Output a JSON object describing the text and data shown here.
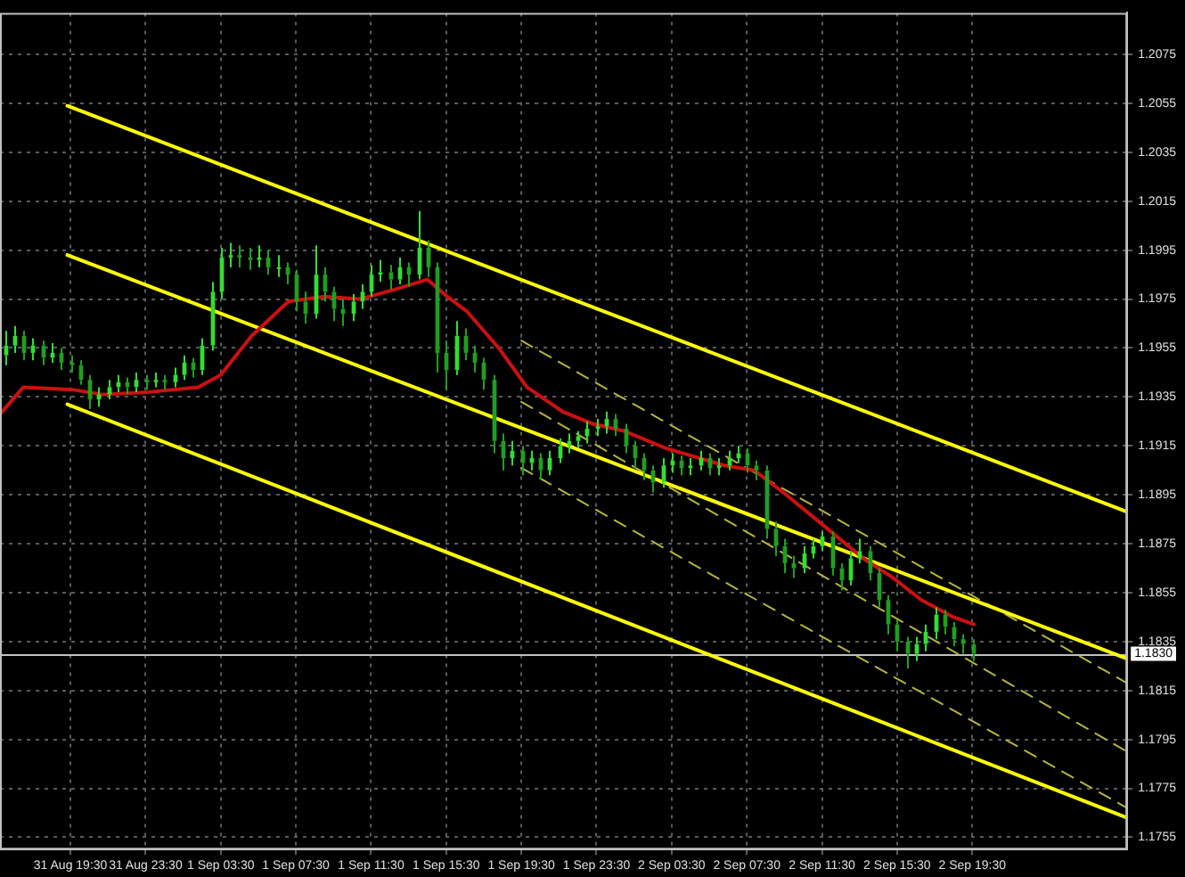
{
  "chart_data": {
    "type": "candlestick",
    "colors": [
      "#33dd33",
      "#33dd33",
      "#1f9f1f",
      "#33dd33",
      "#1f9f1f",
      "#33dd33",
      "#1f9f1f",
      "#1f9f1f",
      "#1f9f1f",
      "#1f9f1f",
      "#33dd33",
      "#33dd33",
      "#33dd33",
      "#1f9f1f",
      "#33dd33",
      "#1f9f1f",
      "#33dd33",
      "#1f9f1f",
      "#33dd33",
      "#33dd33",
      "#1f9f1f",
      "#33dd33",
      "#33dd33",
      "#33dd33",
      "#33dd33",
      "#1f9f1f",
      "#1f9f1f",
      "#33dd33",
      "#1f9f1f",
      "#33dd33",
      "#1f9f1f",
      "#1f9f1f",
      "#1f9f1f",
      "#33dd33",
      "#1f9f1f",
      "#1f9f1f",
      "#1f9f1f",
      "#33dd33",
      "#33dd33",
      "#33dd33",
      "#33dd33",
      "#1f9f1f",
      "#33dd33",
      "#1f9f1f",
      "#33dd33",
      "#1f9f1f",
      "#1f9f1f",
      "#1f9f1f",
      "#33dd33",
      "#1f9f1f",
      "#1f9f1f",
      "#1f9f1f",
      "#1f9f1f",
      "#1f9f1f",
      "#33dd33",
      "#1f9f1f",
      "#33dd33",
      "#1f9f1f",
      "#33dd33",
      "#33dd33",
      "#33dd33",
      "#33dd33",
      "#33dd33",
      "#33dd33",
      "#33dd33",
      "#1f9f1f",
      "#1f9f1f",
      "#1f9f1f",
      "#1f9f1f",
      "#1f9f1f",
      "#33dd33",
      "#33dd33",
      "#1f9f1f",
      "#33dd33",
      "#33dd33",
      "#1f9f1f",
      "#33dd33",
      "#33dd33",
      "#33dd33",
      "#1f9f1f",
      "#1f9f1f",
      "#1f9f1f",
      "#1f9f1f",
      "#1f9f1f",
      "#1f9f1f",
      "#33dd33",
      "#33dd33",
      "#33dd33",
      "#1f9f1f",
      "#1f9f1f",
      "#33dd33",
      "#33dd33",
      "#1f9f1f",
      "#1f9f1f",
      "#1f9f1f",
      "#1f9f1f",
      "#1f9f1f",
      "#33dd33",
      "#33dd33",
      "#33dd33",
      "#1f9f1f",
      "#1f9f1f",
      "#1f9f1f",
      "#1f9f1f"
    ],
    "x": [
      "--08-31T16:00",
      "--08-31T16:30",
      "--08-31T17:00",
      "--08-31T17:30",
      "--08-31T18:00",
      "--08-31T18:30",
      "--08-31T19:00",
      "--08-31T19:30",
      "--08-31T20:00",
      "--08-31T20:30",
      "--08-31T21:00",
      "--08-31T21:30",
      "--08-31T22:00",
      "--08-31T22:30",
      "--08-31T23:00",
      "--08-31T23:30",
      "--09-01T00:00",
      "--09-01T00:30",
      "--09-01T01:00",
      "--09-01T01:30",
      "--09-01T02:00",
      "--09-01T02:30",
      "--09-01T03:00",
      "--09-01T03:30",
      "--09-01T04:00",
      "--09-01T04:30",
      "--09-01T05:00",
      "--09-01T05:30",
      "--09-01T06:00",
      "--09-01T06:30",
      "--09-01T07:00",
      "--09-01T07:30",
      "--09-01T08:00",
      "--09-01T08:30",
      "--09-01T09:00",
      "--09-01T09:30",
      "--09-01T10:00",
      "--09-01T10:30",
      "--09-01T11:00",
      "--09-01T11:30",
      "--09-01T12:00",
      "--09-01T12:30",
      "--09-01T13:00",
      "--09-01T13:30",
      "--09-01T14:00",
      "--09-01T14:30",
      "--09-01T15:00",
      "--09-01T15:30",
      "--09-01T16:00",
      "--09-01T16:30",
      "--09-01T17:00",
      "--09-01T17:30",
      "--09-01T18:00",
      "--09-01T18:30",
      "--09-01T19:00",
      "--09-01T19:30",
      "--09-01T20:00",
      "--09-01T20:30",
      "--09-01T21:00",
      "--09-01T21:30",
      "--09-01T22:00",
      "--09-01T22:30",
      "--09-01T23:00",
      "--09-01T23:30",
      "--09-02T00:00",
      "--09-02T00:30",
      "--09-02T01:00",
      "--09-02T01:30",
      "--09-02T02:00",
      "--09-02T02:30",
      "--09-02T03:00",
      "--09-02T03:30",
      "--09-02T04:00",
      "--09-02T04:30",
      "--09-02T05:00",
      "--09-02T05:30",
      "--09-02T06:00",
      "--09-02T06:30",
      "--09-02T07:00",
      "--09-02T07:30",
      "--09-02T08:00",
      "--09-02T08:30",
      "--09-02T09:00",
      "--09-02T09:30",
      "--09-02T10:00",
      "--09-02T10:30",
      "--09-02T11:00",
      "--09-02T11:30",
      "--09-02T12:00",
      "--09-02T12:30",
      "--09-02T13:00",
      "--09-02T13:30",
      "--09-02T14:00",
      "--09-02T14:30",
      "--09-02T15:00",
      "--09-02T15:30",
      "--09-02T16:00",
      "--09-02T16:30",
      "--09-02T17:00",
      "--09-02T17:30",
      "--09-02T18:00",
      "--09-02T18:30",
      "--09-02T19:00",
      "--09-02T19:30"
    ],
    "ohlc": [
      [
        1.1952,
        1.1962,
        1.1948,
        1.1956
      ],
      [
        1.1956,
        1.1964,
        1.1953,
        1.196
      ],
      [
        1.196,
        1.1962,
        1.195,
        1.1953
      ],
      [
        1.1953,
        1.1959,
        1.195,
        1.1956
      ],
      [
        1.1956,
        1.1958,
        1.1948,
        1.1951
      ],
      [
        1.1951,
        1.1957,
        1.1949,
        1.1953
      ],
      [
        1.1953,
        1.1955,
        1.1946,
        1.1949
      ],
      [
        1.1949,
        1.1952,
        1.1945,
        1.1948
      ],
      [
        1.1948,
        1.195,
        1.194,
        1.1942
      ],
      [
        1.1942,
        1.1944,
        1.193,
        1.1934
      ],
      [
        1.1934,
        1.1939,
        1.1931,
        1.1936
      ],
      [
        1.1936,
        1.1942,
        1.1934,
        1.1939
      ],
      [
        1.1939,
        1.1944,
        1.1937,
        1.1941
      ],
      [
        1.1941,
        1.1943,
        1.1936,
        1.1939
      ],
      [
        1.1939,
        1.1945,
        1.1937,
        1.1942
      ],
      [
        1.1942,
        1.1944,
        1.1938,
        1.1941
      ],
      [
        1.1941,
        1.1945,
        1.1939,
        1.1942
      ],
      [
        1.1942,
        1.1944,
        1.1938,
        1.1941
      ],
      [
        1.1941,
        1.1947,
        1.1939,
        1.1944
      ],
      [
        1.1944,
        1.1952,
        1.1942,
        1.1949
      ],
      [
        1.1949,
        1.1951,
        1.1943,
        1.1946
      ],
      [
        1.1946,
        1.1959,
        1.1944,
        1.1956
      ],
      [
        1.1956,
        1.1982,
        1.1954,
        1.1978
      ],
      [
        1.1978,
        1.1996,
        1.1975,
        1.1992
      ],
      [
        1.1992,
        1.1998,
        1.1988,
        1.1993
      ],
      [
        1.1993,
        1.1997,
        1.1988,
        1.1992
      ],
      [
        1.1992,
        1.1996,
        1.1987,
        1.1991
      ],
      [
        1.1991,
        1.1997,
        1.1988,
        1.1992
      ],
      [
        1.1992,
        1.1995,
        1.1985,
        1.1988
      ],
      [
        1.1988,
        1.1993,
        1.1984,
        1.1988
      ],
      [
        1.1988,
        1.199,
        1.1981,
        1.1985
      ],
      [
        1.1985,
        1.1987,
        1.197,
        1.1974
      ],
      [
        1.1974,
        1.1978,
        1.1965,
        1.1969
      ],
      [
        1.1969,
        1.1997,
        1.1967,
        1.1985
      ],
      [
        1.1985,
        1.1988,
        1.1974,
        1.1978
      ],
      [
        1.1978,
        1.198,
        1.1966,
        1.1971
      ],
      [
        1.1971,
        1.1975,
        1.1964,
        1.1969
      ],
      [
        1.1969,
        1.1977,
        1.1966,
        1.1974
      ],
      [
        1.1974,
        1.1981,
        1.1971,
        1.1978
      ],
      [
        1.1978,
        1.1989,
        1.1976,
        1.1985
      ],
      [
        1.1985,
        1.1991,
        1.1982,
        1.1986
      ],
      [
        1.1986,
        1.1989,
        1.1979,
        1.1983
      ],
      [
        1.1983,
        1.1992,
        1.1981,
        1.1988
      ],
      [
        1.1988,
        1.199,
        1.198,
        1.1985
      ],
      [
        1.1985,
        1.2011,
        1.1983,
        1.1996
      ],
      [
        1.1996,
        1.1999,
        1.1984,
        1.1988
      ],
      [
        1.1988,
        1.199,
        1.1945,
        1.1953
      ],
      [
        1.1953,
        1.1958,
        1.1938,
        1.1946
      ],
      [
        1.1946,
        1.1966,
        1.1944,
        1.196
      ],
      [
        1.196,
        1.1963,
        1.195,
        1.1953
      ],
      [
        1.1953,
        1.1956,
        1.1945,
        1.1949
      ],
      [
        1.1949,
        1.1951,
        1.1938,
        1.1942
      ],
      [
        1.1942,
        1.1944,
        1.1912,
        1.1917
      ],
      [
        1.1917,
        1.192,
        1.1905,
        1.191
      ],
      [
        1.191,
        1.1917,
        1.1907,
        1.1913
      ],
      [
        1.1913,
        1.1915,
        1.1903,
        1.1908
      ],
      [
        1.1908,
        1.1913,
        1.1905,
        1.191
      ],
      [
        1.191,
        1.1912,
        1.1901,
        1.1905
      ],
      [
        1.1905,
        1.1913,
        1.1903,
        1.191
      ],
      [
        1.191,
        1.1918,
        1.1908,
        1.1915
      ],
      [
        1.1915,
        1.192,
        1.1912,
        1.1917
      ],
      [
        1.1917,
        1.1921,
        1.1914,
        1.1919
      ],
      [
        1.1919,
        1.1925,
        1.1916,
        1.1922
      ],
      [
        1.1922,
        1.1926,
        1.1919,
        1.1923
      ],
      [
        1.1923,
        1.1929,
        1.192,
        1.1926
      ],
      [
        1.1926,
        1.1928,
        1.1919,
        1.1922
      ],
      [
        1.1922,
        1.1924,
        1.1912,
        1.1915
      ],
      [
        1.1915,
        1.1917,
        1.1906,
        1.191
      ],
      [
        1.191,
        1.1912,
        1.1901,
        1.1905
      ],
      [
        1.1905,
        1.1907,
        1.1896,
        1.19
      ],
      [
        1.19,
        1.191,
        1.1898,
        1.1907
      ],
      [
        1.1907,
        1.1912,
        1.1904,
        1.1909
      ],
      [
        1.1909,
        1.1911,
        1.1903,
        1.1906
      ],
      [
        1.1906,
        1.191,
        1.1903,
        1.1907
      ],
      [
        1.1907,
        1.1913,
        1.1905,
        1.191
      ],
      [
        1.191,
        1.1912,
        1.1903,
        1.1906
      ],
      [
        1.1906,
        1.191,
        1.1903,
        1.1907
      ],
      [
        1.1907,
        1.1913,
        1.1905,
        1.191
      ],
      [
        1.191,
        1.1915,
        1.1908,
        1.1912
      ],
      [
        1.1912,
        1.1914,
        1.1904,
        1.1907
      ],
      [
        1.1907,
        1.1909,
        1.1901,
        1.1905
      ],
      [
        1.1905,
        1.1907,
        1.1877,
        1.1881
      ],
      [
        1.1881,
        1.1884,
        1.187,
        1.1874
      ],
      [
        1.1874,
        1.1877,
        1.1863,
        1.1867
      ],
      [
        1.1867,
        1.187,
        1.1861,
        1.1865
      ],
      [
        1.1865,
        1.1874,
        1.1863,
        1.1871
      ],
      [
        1.1871,
        1.1877,
        1.1869,
        1.1874
      ],
      [
        1.1874,
        1.188,
        1.1872,
        1.1878
      ],
      [
        1.1878,
        1.188,
        1.1862,
        1.1865
      ],
      [
        1.1865,
        1.1867,
        1.1856,
        1.186
      ],
      [
        1.186,
        1.1872,
        1.1858,
        1.1869
      ],
      [
        1.1869,
        1.1877,
        1.1867,
        1.1872
      ],
      [
        1.1872,
        1.1874,
        1.186,
        1.1863
      ],
      [
        1.1863,
        1.1865,
        1.1849,
        1.1852
      ],
      [
        1.1852,
        1.1854,
        1.1838,
        1.1842
      ],
      [
        1.1842,
        1.1844,
        1.1831,
        1.1835
      ],
      [
        1.1835,
        1.1837,
        1.1824,
        1.183
      ],
      [
        1.183,
        1.1837,
        1.1827,
        1.1834
      ],
      [
        1.1834,
        1.1842,
        1.1831,
        1.1839
      ],
      [
        1.1839,
        1.1849,
        1.1836,
        1.1846
      ],
      [
        1.1846,
        1.1848,
        1.1838,
        1.1841
      ],
      [
        1.1841,
        1.1843,
        1.1833,
        1.1836
      ],
      [
        1.1836,
        1.1838,
        1.183,
        1.1834
      ],
      [
        1.1834,
        1.1836,
        1.1827,
        1.183
      ]
    ],
    "series": [
      {
        "type": "line",
        "color": "#cc1010",
        "line_style": "solid",
        "x": [
          "--08-31T15:45",
          "--08-31T17:00",
          "--08-31T19:36",
          "--08-31T21:12",
          "--08-31T23:42",
          "--09-01T02:18",
          "--09-01T03:30",
          "--09-01T05:09",
          "--09-01T07:06",
          "--09-01T09:00",
          "--09-01T10:54",
          "--09-01T12:48",
          "--09-01T14:30",
          "--09-01T15:24",
          "--09-01T16:36",
          "--09-01T18:18",
          "--09-01T19:48",
          "--09-01T21:42",
          "--09-01T23:18",
          "--09-02T01:00",
          "--09-02T03:12",
          "--09-02T06:18",
          "--09-02T07:54",
          "--09-02T09:36",
          "--09-02T11:30",
          "--09-02T13:42",
          "--09-02T15:18",
          "--09-02T16:48",
          "--09-02T18:30",
          "--09-02T19:36"
        ],
        "values": [
          1.1928,
          1.1939,
          1.1938,
          1.1936,
          1.1937,
          1.1939,
          1.1944,
          1.196,
          1.1974,
          1.1976,
          1.1975,
          1.1979,
          1.1983,
          1.1977,
          1.197,
          1.1955,
          1.1939,
          1.1929,
          1.1924,
          1.1921,
          1.1914,
          1.1907,
          1.1905,
          1.1895,
          1.1883,
          1.1869,
          1.1861,
          1.1852,
          1.1845,
          1.1842
        ]
      },
      {
        "type": "line",
        "color": "#ffff00",
        "line_style": "solid",
        "x": [
          "--08-31T19:20",
          "--09-03T03:45"
        ],
        "values": [
          1.2054,
          1.1888
        ]
      },
      {
        "type": "line",
        "color": "#ffff00",
        "line_style": "solid",
        "x": [
          "--08-31T19:20",
          "--09-03T03:45"
        ],
        "values": [
          1.1993,
          1.1828
        ]
      },
      {
        "type": "line",
        "color": "#ffff00",
        "line_style": "solid",
        "x": [
          "--08-31T19:20",
          "--09-03T03:45"
        ],
        "values": [
          1.1932,
          1.1763
        ]
      },
      {
        "type": "line",
        "color": "#b4b43c",
        "line_style": "dashed",
        "x": [
          "--09-01T19:30",
          "--09-03T03:45"
        ],
        "values": [
          1.1958,
          1.1818
        ]
      },
      {
        "type": "line",
        "color": "#b4b43c",
        "line_style": "dashed",
        "x": [
          "--09-01T19:30",
          "--09-03T03:45"
        ],
        "values": [
          1.1933,
          1.179
        ]
      },
      {
        "type": "line",
        "color": "#b4b43c",
        "line_style": "dashed",
        "x": [
          "--09-01T19:30",
          "--09-03T03:45"
        ],
        "values": [
          1.1906,
          1.1767
        ]
      }
    ],
    "xlim": [
      "--08-31T15:45",
      "--09-03T03:45"
    ],
    "xticks": [
      {
        "value": "--08-31T19:30",
        "label": "31 Aug 19:30"
      },
      {
        "value": "--08-31T23:30",
        "label": "31 Aug 23:30"
      },
      {
        "value": "--09-01T03:30",
        "label": "1 Sep 03:30"
      },
      {
        "value": "--09-01T07:30",
        "label": "1 Sep 07:30"
      },
      {
        "value": "--09-01T11:30",
        "label": "1 Sep 11:30"
      },
      {
        "value": "--09-01T15:30",
        "label": "1 Sep 15:30"
      },
      {
        "value": "--09-01T19:30",
        "label": "1 Sep 19:30"
      },
      {
        "value": "--09-01T23:30",
        "label": "1 Sep 23:30"
      },
      {
        "value": "--09-02T03:30",
        "label": "2 Sep 03:30"
      },
      {
        "value": "--09-02T07:30",
        "label": "2 Sep 07:30"
      },
      {
        "value": "--09-02T11:30",
        "label": "2 Sep 11:30"
      },
      {
        "value": "--09-02T15:30",
        "label": "2 Sep 15:30"
      },
      {
        "value": "--09-02T19:30",
        "label": "2 Sep 19:30"
      }
    ],
    "ylim": [
      1.175,
      1.2092
    ],
    "yticks": [
      1.1755,
      1.1775,
      1.1795,
      1.1815,
      1.1835,
      1.1855,
      1.1875,
      1.1895,
      1.1915,
      1.1935,
      1.1955,
      1.1975,
      1.1995,
      1.2015,
      1.2035,
      1.2055,
      1.2075
    ],
    "ref_lines": [
      {
        "axis": "y",
        "value": 1.183,
        "label": "1.1830",
        "color": "#c0c0c0"
      }
    ],
    "grid": true
  }
}
